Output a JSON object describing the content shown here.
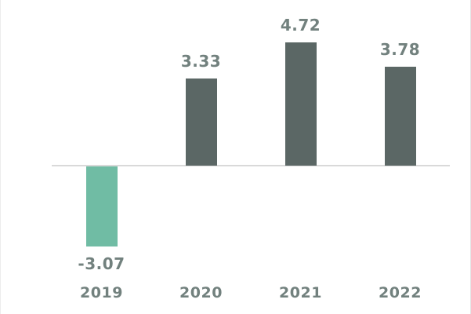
{
  "chart_data": {
    "type": "bar",
    "title": "",
    "xlabel": "",
    "ylabel": "",
    "categories": [
      "2019",
      "2020",
      "2021",
      "2022"
    ],
    "values": [
      -3.07,
      3.33,
      4.72,
      3.78
    ],
    "data_labels": [
      "-3.07",
      "3.33",
      "4.72",
      "3.78"
    ],
    "ylim": [
      -3.5,
      5.0
    ],
    "grid": false,
    "legend": false,
    "axis_line": "zero-baseline-only",
    "colors": {
      "positive_bar": "#5b6765",
      "negative_bar": "#70bca4",
      "data_label": "#72817e",
      "category_label": "#72817e",
      "axis_line": "#d9d9d9"
    }
  }
}
